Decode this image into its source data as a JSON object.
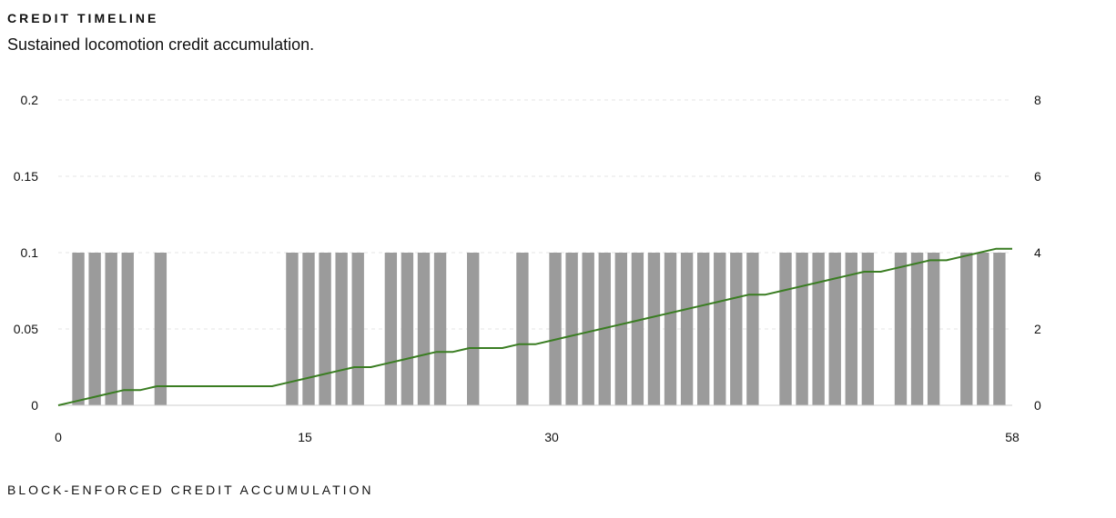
{
  "header": {
    "eyebrow": "CREDIT TIMELINE",
    "subtitle": "Sustained locomotion credit accumulation."
  },
  "footer": {
    "caption": "BLOCK-ENFORCED CREDIT ACCUMULATION"
  },
  "chart_data": {
    "type": "bar",
    "title": "",
    "xlabel": "",
    "ylabel": "",
    "xlim": [
      0,
      58
    ],
    "ylim_left": [
      0,
      0.2
    ],
    "ylim_right": [
      0,
      8
    ],
    "x_ticks": [
      0,
      15,
      30,
      58
    ],
    "y_left_ticks": [
      0,
      0.05,
      0.1,
      0.15,
      0.2
    ],
    "y_right_ticks": [
      0,
      2,
      4,
      6,
      8
    ],
    "grid": true,
    "colors": {
      "bars": "#9b9b9b",
      "line": "#3a7d22",
      "grid": "#e6e6e6",
      "axis": "#cccccc"
    },
    "series": [
      {
        "type": "bar",
        "axis": "left",
        "x": [
          1,
          2,
          3,
          4,
          6,
          14,
          15,
          16,
          17,
          18,
          20,
          21,
          22,
          23,
          25,
          28,
          30,
          31,
          32,
          33,
          34,
          35,
          36,
          37,
          38,
          39,
          40,
          41,
          42,
          44,
          45,
          46,
          47,
          48,
          49,
          51,
          52,
          53,
          55,
          56,
          57
        ],
        "values": [
          0.1,
          0.1,
          0.1,
          0.1,
          0.1,
          0.1,
          0.1,
          0.1,
          0.1,
          0.1,
          0.1,
          0.1,
          0.1,
          0.1,
          0.1,
          0.1,
          0.1,
          0.1,
          0.1,
          0.1,
          0.1,
          0.1,
          0.1,
          0.1,
          0.1,
          0.1,
          0.1,
          0.1,
          0.1,
          0.1,
          0.1,
          0.1,
          0.1,
          0.1,
          0.1,
          0.1,
          0.1,
          0.1,
          0.1,
          0.1,
          0.1
        ]
      },
      {
        "type": "line",
        "axis": "right",
        "x": [
          0,
          1,
          2,
          3,
          4,
          5,
          6,
          7,
          8,
          9,
          10,
          11,
          12,
          13,
          14,
          15,
          16,
          17,
          18,
          19,
          20,
          21,
          22,
          23,
          24,
          25,
          26,
          27,
          28,
          29,
          30,
          31,
          32,
          33,
          34,
          35,
          36,
          37,
          38,
          39,
          40,
          41,
          42,
          43,
          44,
          45,
          46,
          47,
          48,
          49,
          50,
          51,
          52,
          53,
          54,
          55,
          56,
          57,
          58
        ],
        "values": [
          0,
          0.1,
          0.2,
          0.3,
          0.4,
          0.4,
          0.5,
          0.5,
          0.5,
          0.5,
          0.5,
          0.5,
          0.5,
          0.5,
          0.6,
          0.7,
          0.8,
          0.9,
          1.0,
          1.0,
          1.1,
          1.2,
          1.3,
          1.4,
          1.4,
          1.5,
          1.5,
          1.5,
          1.6,
          1.6,
          1.7,
          1.8,
          1.9,
          2.0,
          2.1,
          2.2,
          2.3,
          2.4,
          2.5,
          2.6,
          2.7,
          2.8,
          2.9,
          2.9,
          3.0,
          3.1,
          3.2,
          3.3,
          3.4,
          3.5,
          3.5,
          3.6,
          3.7,
          3.8,
          3.8,
          3.9,
          4.0,
          4.1,
          4.1
        ]
      }
    ]
  }
}
